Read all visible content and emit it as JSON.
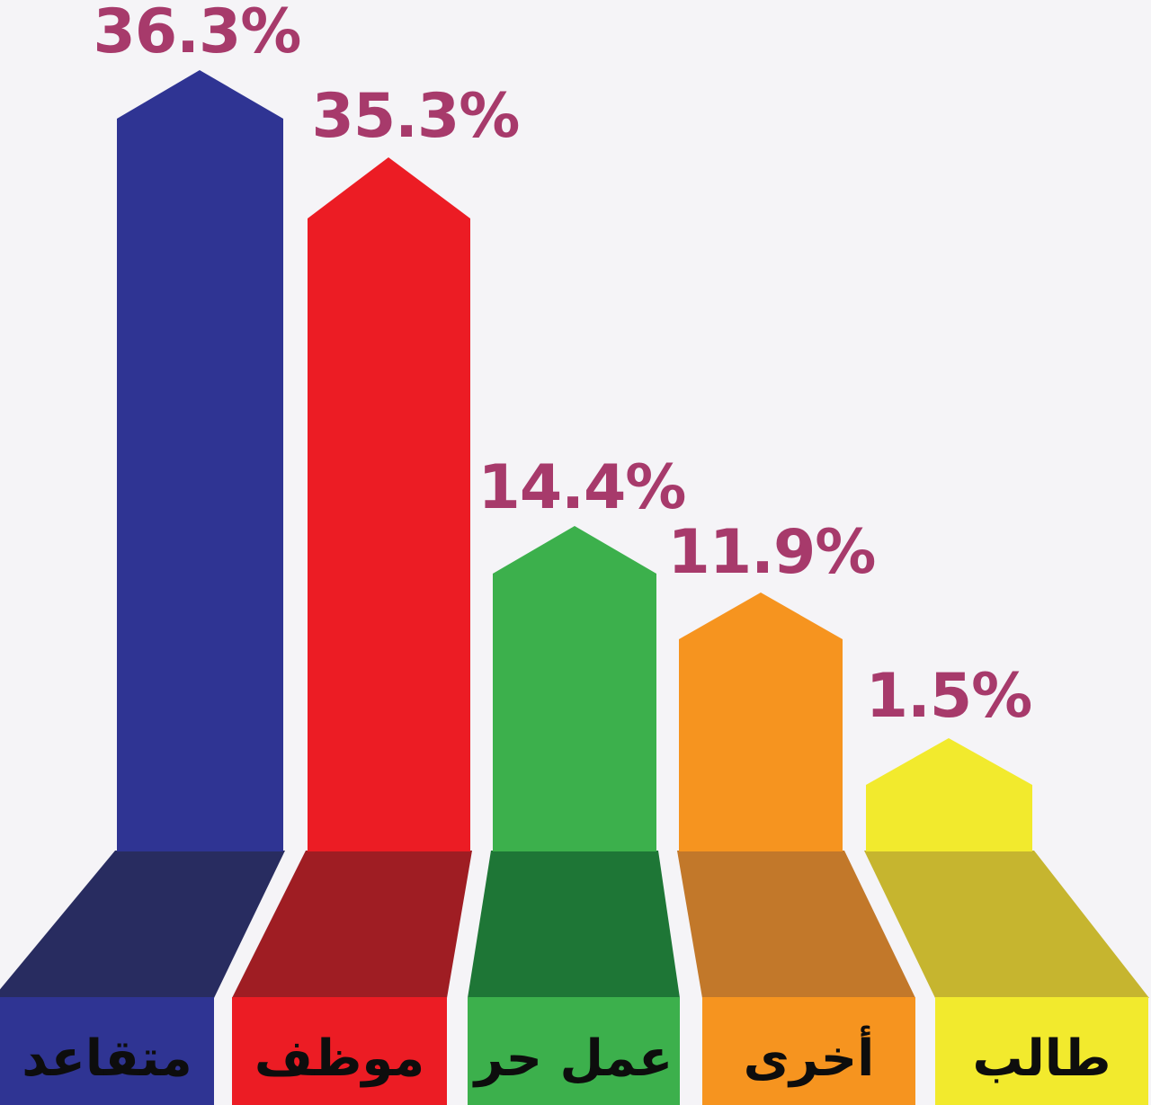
{
  "page": {
    "background_color": "#f5f4f7"
  },
  "chart_data": {
    "type": "bar",
    "style": "3d-perspective-pointed-columns-infographic",
    "text_direction": "rtl",
    "title": "",
    "xlabel": "",
    "ylabel": "",
    "legend": "none",
    "grid": false,
    "axes_visible": false,
    "ylim": [
      0,
      40
    ],
    "categories": [
      "متقاعد",
      "موظف",
      "عمل حر",
      "أخرى",
      "طالب"
    ],
    "values": [
      36.3,
      35.3,
      14.4,
      11.9,
      1.5
    ],
    "series": [
      {
        "category": "متقاعد",
        "value": 36.3,
        "value_label": "36.3%",
        "bar_color": "#2f3493",
        "base_shadow_color": "#282c60"
      },
      {
        "category": "موظف",
        "value": 35.3,
        "value_label": "35.3%",
        "bar_color": "#ec1c24",
        "base_shadow_color": "#9f1d23"
      },
      {
        "category": "عمل حر",
        "value": 14.4,
        "value_label": "14.4%",
        "bar_color": "#3cb04c",
        "base_shadow_color": "#1e7636"
      },
      {
        "category": "أخرى",
        "value": 11.9,
        "value_label": "11.9%",
        "bar_color": "#f6941f",
        "base_shadow_color": "#c2782a"
      },
      {
        "category": "طالب",
        "value": 1.5,
        "value_label": "1.5%",
        "bar_color": "#f2ea2d",
        "base_shadow_color": "#c6b52f"
      }
    ],
    "value_label_color": "#a73a6b",
    "category_label_color": "#0d0d0d"
  }
}
